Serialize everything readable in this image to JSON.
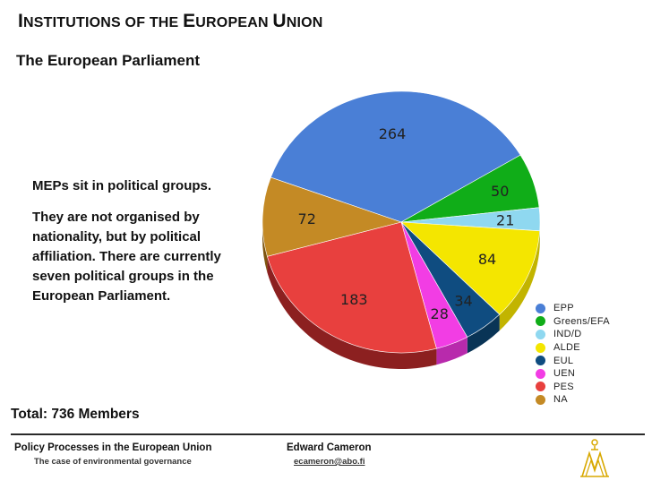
{
  "header": {
    "title_parts": [
      "I",
      "NSTITUTIONS OF THE ",
      "E",
      "UROPEAN ",
      "U",
      "NION"
    ],
    "subtitle": "The European Parliament"
  },
  "body_text": {
    "para1": "MEPs sit in political groups.",
    "para2": "They are not organised by nationality, but by political affiliation. There are currently seven political groups in the European Parliament."
  },
  "total": "Total: 736 Members",
  "footer": {
    "course_title": "Policy Processes in the European Union",
    "course_subtitle": "The case of environmental governance",
    "author": "Edward Cameron",
    "email": "ecameron@abo.fi"
  },
  "chart_data": {
    "type": "pie",
    "title": "",
    "categories": [
      "EPP",
      "Greens/EFA",
      "IND/D",
      "ALDE",
      "EUL",
      "UEN",
      "PES",
      "NA"
    ],
    "values": [
      264,
      50,
      21,
      84,
      34,
      28,
      183,
      72
    ],
    "colors": [
      "#4a7fd6",
      "#10ad18",
      "#8fd8f0",
      "#f4e600",
      "#0f4c80",
      "#f23de4",
      "#e8403e",
      "#c48a25"
    ],
    "side_colors": [
      "#2c5aa8",
      "#0b7d12",
      "#66b3cc",
      "#c2b400",
      "#093456",
      "#b82aac",
      "#8c2020",
      "#7e5510"
    ],
    "legend_position": "right",
    "three_d": true,
    "total": 736
  }
}
